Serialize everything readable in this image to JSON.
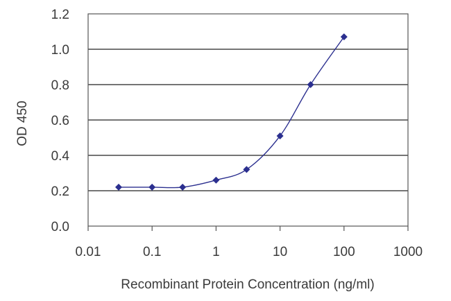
{
  "chart_data": {
    "type": "line",
    "title": "",
    "xlabel": "Recombinant Protein Concentration (ng/ml)",
    "ylabel": "OD 450",
    "xscale": "log",
    "xlim": [
      0.01,
      1000
    ],
    "ylim": [
      0,
      1.2
    ],
    "x_ticks": [
      "0.01",
      "0.1",
      "1",
      "10",
      "100",
      "1000"
    ],
    "y_ticks": [
      "0.0",
      "0.2",
      "0.4",
      "0.6",
      "0.8",
      "1.0",
      "1.2"
    ],
    "grid": "horizontal",
    "legend": "none",
    "colors": {
      "series": "#2b2f8f",
      "grid": "#222222",
      "axis": "#555555"
    },
    "series": [
      {
        "x": [
          0.03,
          0.1,
          0.3,
          1,
          3,
          10,
          30,
          100
        ],
        "y": [
          0.22,
          0.22,
          0.22,
          0.26,
          0.32,
          0.51,
          0.8,
          1.07
        ]
      }
    ]
  }
}
